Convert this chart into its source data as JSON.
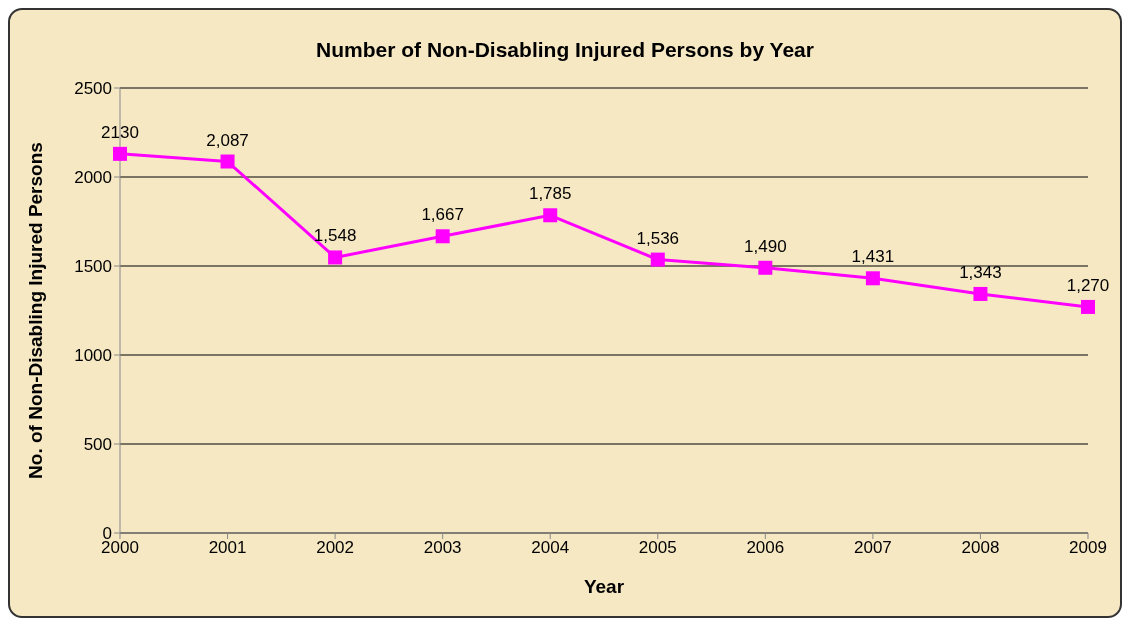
{
  "chart_data": {
    "type": "line",
    "title": "Number of Non-Disabling Injured Persons by Year",
    "xlabel": "Year",
    "ylabel": "No. of Non-Disabling Injured Persons",
    "categories": [
      "2000",
      "2001",
      "2002",
      "2003",
      "2004",
      "2005",
      "2006",
      "2007",
      "2008",
      "2009"
    ],
    "series": [
      {
        "color": "#ff00ff",
        "values": [
          2130,
          2087,
          1548,
          1667,
          1785,
          1536,
          1490,
          1431,
          1343,
          1270
        ],
        "value_labels": [
          "2130",
          "2,087",
          "1,548",
          "1,667",
          "1,785",
          "1,536",
          "1,490",
          "1,431",
          "1,343",
          "1,270"
        ]
      }
    ],
    "ylim": [
      0,
      2500
    ],
    "yticks": [
      0,
      500,
      1000,
      1500,
      2000,
      2500
    ],
    "grid": "y",
    "legend": false,
    "marker": "square",
    "line_style": "solid"
  }
}
